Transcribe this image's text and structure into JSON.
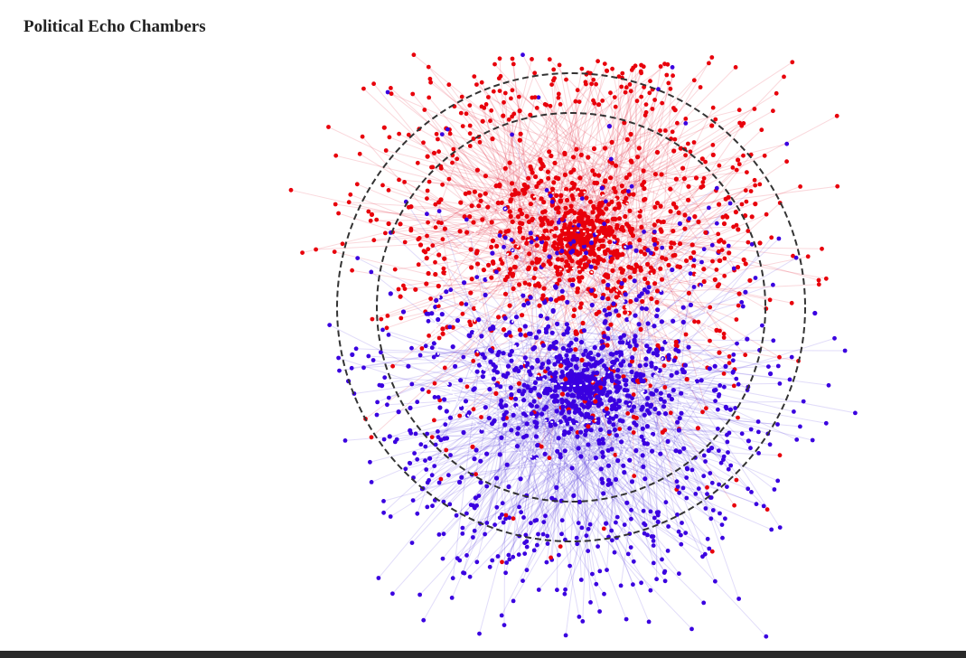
{
  "header": {
    "title": "Political Echo Chambers"
  }
}
